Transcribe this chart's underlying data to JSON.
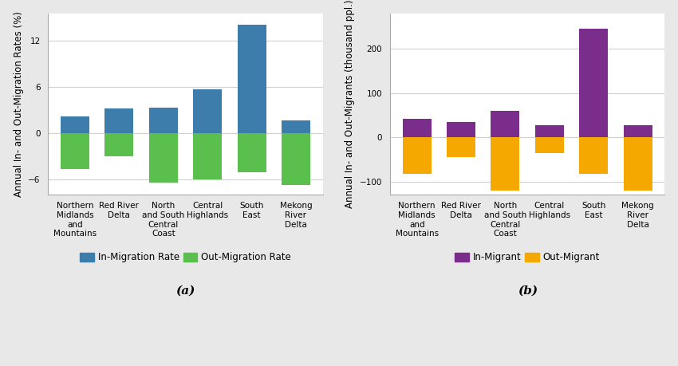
{
  "categories": [
    "Northern\nMidlands\nand\nMountains",
    "Red River\nDelta",
    "North\nand South\nCentral\nCoast",
    "Central\nHighlands",
    "South\nEast",
    "Mekong\nRiver\nDelta"
  ],
  "chart_a": {
    "in_migration": [
      2.2,
      3.2,
      3.3,
      5.7,
      14.0,
      1.6
    ],
    "out_migration": [
      -4.7,
      -3.0,
      -6.4,
      -6.0,
      -5.1,
      -6.7
    ],
    "ylabel": "Annual In- and Out-Migration Rates (%)",
    "ylim": [
      -8.0,
      15.5
    ],
    "yticks": [
      -6,
      0,
      6,
      12
    ],
    "in_color": "#3d7dab",
    "out_color": "#5bbf4e",
    "legend_in": "In-Migration Rate",
    "legend_out": "Out-Migration Rate",
    "label": "(a)"
  },
  "chart_b": {
    "in_migration": [
      42,
      35,
      60,
      28,
      245,
      28
    ],
    "out_migration": [
      -82,
      -45,
      -120,
      -35,
      -82,
      -120
    ],
    "ylabel": "Annual In- and Out-Migrants (thousand ppl.)",
    "ylim": [
      -130,
      280
    ],
    "yticks": [
      -100,
      0,
      100,
      200
    ],
    "in_color": "#7b2d8b",
    "out_color": "#f5a800",
    "legend_in": "In-Migrant",
    "legend_out": "Out-Migrant",
    "label": "(b)"
  },
  "plot_bg": "#ffffff",
  "fig_bg": "#e8e8e8",
  "grid_color": "#d0d0d0",
  "spine_color": "#aaaaaa",
  "tick_fontsize": 7.5,
  "ylabel_fontsize": 8.5,
  "legend_fontsize": 8.5,
  "label_fontsize": 11
}
